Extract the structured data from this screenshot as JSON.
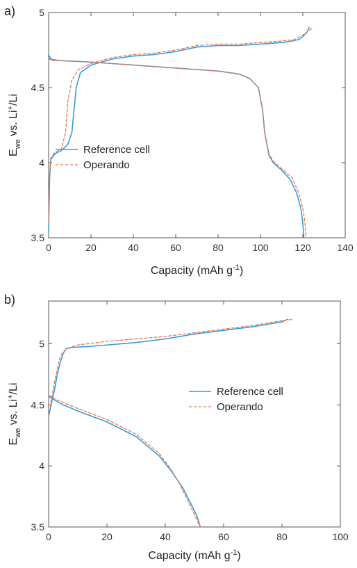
{
  "colors": {
    "reference": "#3a9ad6",
    "operando": "#e8784f"
  },
  "chart_data": [
    {
      "panel_label": "a)",
      "type": "line",
      "xlabel": "Capacity (mAh g",
      "xlabel_sup": "-1",
      "xlabel_end": ")",
      "ylabel_main": "E",
      "ylabel_sub": "we",
      "ylabel_mid": " vs. Li",
      "ylabel_sup": "+",
      "ylabel_end": "/Li",
      "xlim": [
        0,
        140
      ],
      "ylim": [
        3.5,
        5
      ],
      "xticks": [
        "0",
        "20",
        "40",
        "60",
        "80",
        "100",
        "120",
        "140"
      ],
      "yticks": [
        "3.5",
        "4",
        "4.5",
        "5"
      ],
      "legend_position": "center-left",
      "series": [
        {
          "name": "Reference cell",
          "style": "solid",
          "segments": [
            [
              [
                0,
                3.55
              ],
              [
                0.5,
                3.9
              ],
              [
                1,
                4.02
              ],
              [
                3,
                4.06
              ],
              [
                6,
                4.08
              ],
              [
                9,
                4.12
              ],
              [
                11,
                4.2
              ],
              [
                12,
                4.35
              ],
              [
                13,
                4.5
              ],
              [
                15,
                4.6
              ],
              [
                20,
                4.65
              ],
              [
                30,
                4.69
              ],
              [
                40,
                4.71
              ],
              [
                50,
                4.72
              ],
              [
                60,
                4.74
              ],
              [
                70,
                4.77
              ],
              [
                80,
                4.78
              ],
              [
                90,
                4.78
              ],
              [
                100,
                4.79
              ],
              [
                110,
                4.8
              ],
              [
                115,
                4.81
              ],
              [
                118,
                4.82
              ],
              [
                120,
                4.84
              ],
              [
                122,
                4.87
              ],
              [
                123,
                4.9
              ]
            ],
            [
              [
                0,
                4.72
              ],
              [
                1,
                4.69
              ],
              [
                5,
                4.68
              ],
              [
                20,
                4.67
              ],
              [
                40,
                4.65
              ],
              [
                60,
                4.63
              ],
              [
                80,
                4.61
              ],
              [
                90,
                4.59
              ],
              [
                95,
                4.56
              ],
              [
                99,
                4.5
              ],
              [
                101,
                4.35
              ],
              [
                102,
                4.2
              ],
              [
                104,
                4.05
              ],
              [
                106,
                4.0
              ],
              [
                110,
                3.95
              ],
              [
                114,
                3.89
              ],
              [
                117,
                3.8
              ],
              [
                119,
                3.7
              ],
              [
                120,
                3.6
              ],
              [
                120.5,
                3.5
              ]
            ]
          ]
        },
        {
          "name": "Operando",
          "style": "dashed",
          "segments": [
            [
              [
                0,
                3.6
              ],
              [
                0.5,
                3.92
              ],
              [
                1,
                4.03
              ],
              [
                3,
                4.07
              ],
              [
                6,
                4.09
              ],
              [
                8,
                4.2
              ],
              [
                9,
                4.4
              ],
              [
                11,
                4.55
              ],
              [
                14,
                4.62
              ],
              [
                20,
                4.66
              ],
              [
                30,
                4.7
              ],
              [
                40,
                4.72
              ],
              [
                50,
                4.73
              ],
              [
                60,
                4.75
              ],
              [
                70,
                4.78
              ],
              [
                80,
                4.79
              ],
              [
                90,
                4.79
              ],
              [
                100,
                4.8
              ],
              [
                110,
                4.81
              ],
              [
                116,
                4.82
              ],
              [
                120,
                4.85
              ],
              [
                123,
                4.88
              ],
              [
                125,
                4.9
              ]
            ],
            [
              [
                0,
                4.7
              ],
              [
                1,
                4.68
              ],
              [
                5,
                4.68
              ],
              [
                20,
                4.67
              ],
              [
                40,
                4.65
              ],
              [
                60,
                4.63
              ],
              [
                80,
                4.61
              ],
              [
                90,
                4.59
              ],
              [
                95,
                4.56
              ],
              [
                99,
                4.5
              ],
              [
                101,
                4.35
              ],
              [
                102,
                4.2
              ],
              [
                104,
                4.06
              ],
              [
                106,
                4.01
              ],
              [
                110,
                3.96
              ],
              [
                115,
                3.9
              ],
              [
                118,
                3.8
              ],
              [
                120,
                3.7
              ],
              [
                121,
                3.6
              ],
              [
                121.5,
                3.5
              ]
            ]
          ]
        }
      ]
    },
    {
      "panel_label": "b)",
      "type": "line",
      "xlabel": "Capacity (mAh g",
      "xlabel_sup": "-1",
      "xlabel_end": ")",
      "ylabel_main": "E",
      "ylabel_sub": "we",
      "ylabel_mid": " vs. Li",
      "ylabel_sup": "+",
      "ylabel_end": "/Li",
      "xlim": [
        0,
        100
      ],
      "ylim": [
        3.5,
        5.35
      ],
      "xticks": [
        "0",
        "20",
        "40",
        "60",
        "80",
        "100"
      ],
      "yticks": [
        "3.5",
        "4",
        "4.5",
        "5"
      ],
      "legend_position": "center-right",
      "series": [
        {
          "name": "Reference cell",
          "style": "solid",
          "segments": [
            [
              [
                0,
                4.4
              ],
              [
                1,
                4.52
              ],
              [
                2,
                4.62
              ],
              [
                3,
                4.75
              ],
              [
                4,
                4.85
              ],
              [
                5,
                4.92
              ],
              [
                6,
                4.96
              ],
              [
                8,
                4.97
              ],
              [
                15,
                4.98
              ],
              [
                30,
                5.01
              ],
              [
                40,
                5.04
              ],
              [
                50,
                5.08
              ],
              [
                60,
                5.11
              ],
              [
                70,
                5.14
              ],
              [
                80,
                5.18
              ],
              [
                82,
                5.2
              ]
            ],
            [
              [
                0,
                4.57
              ],
              [
                2,
                4.54
              ],
              [
                5,
                4.5
              ],
              [
                10,
                4.45
              ],
              [
                20,
                4.36
              ],
              [
                30,
                4.24
              ],
              [
                38,
                4.08
              ],
              [
                42,
                3.96
              ],
              [
                46,
                3.82
              ],
              [
                49,
                3.68
              ],
              [
                51,
                3.58
              ],
              [
                52,
                3.5
              ]
            ]
          ]
        },
        {
          "name": "Operando",
          "style": "dashed",
          "segments": [
            [
              [
                0,
                4.4
              ],
              [
                1,
                4.55
              ],
              [
                2,
                4.68
              ],
              [
                3,
                4.8
              ],
              [
                4,
                4.9
              ],
              [
                6,
                4.96
              ],
              [
                10,
                4.99
              ],
              [
                20,
                5.02
              ],
              [
                30,
                5.04
              ],
              [
                40,
                5.06
              ],
              [
                50,
                5.09
              ],
              [
                60,
                5.12
              ],
              [
                70,
                5.15
              ],
              [
                80,
                5.19
              ],
              [
                84,
                5.2
              ]
            ],
            [
              [
                0,
                4.58
              ],
              [
                2,
                4.55
              ],
              [
                5,
                4.52
              ],
              [
                10,
                4.47
              ],
              [
                20,
                4.38
              ],
              [
                30,
                4.26
              ],
              [
                38,
                4.1
              ],
              [
                42,
                3.97
              ],
              [
                45,
                3.85
              ],
              [
                48,
                3.7
              ],
              [
                51,
                3.55
              ],
              [
                52,
                3.5
              ]
            ]
          ]
        }
      ]
    }
  ]
}
